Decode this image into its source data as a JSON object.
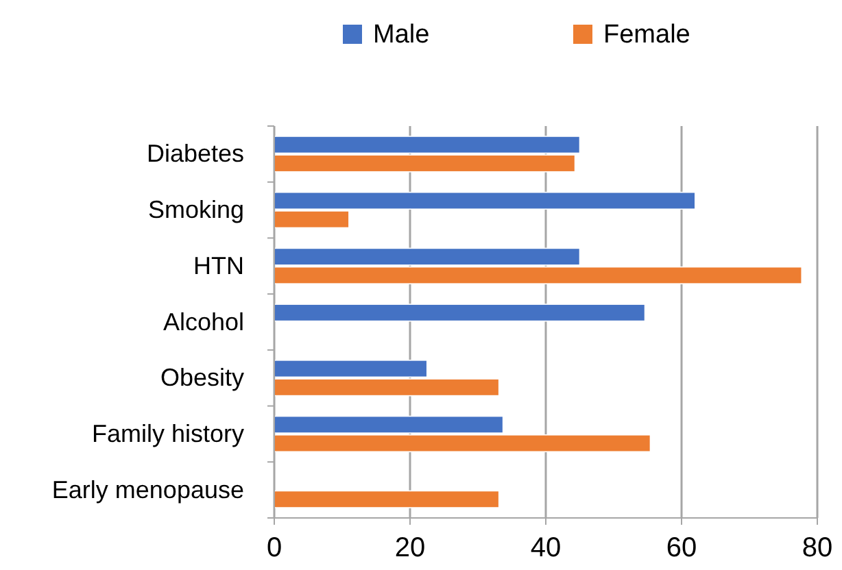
{
  "chart_data": {
    "type": "bar",
    "orientation": "horizontal",
    "categories": [
      "Diabetes",
      "Smoking",
      "HTN",
      "Alcohol",
      "Obesity",
      "Family history",
      "Early menopause"
    ],
    "series": [
      {
        "name": "Male",
        "color": "#4472c4",
        "values": [
          45,
          62,
          45,
          54.6,
          22.5,
          33.7,
          null
        ]
      },
      {
        "name": "Female",
        "color": "#ed7d31",
        "values": [
          44.3,
          11,
          77.7,
          null,
          33.1,
          55.4,
          33.1
        ]
      }
    ],
    "xlim": [
      0,
      80
    ],
    "xticks": [
      0,
      20,
      40,
      60,
      80
    ],
    "grid": "x",
    "legend": "top"
  }
}
